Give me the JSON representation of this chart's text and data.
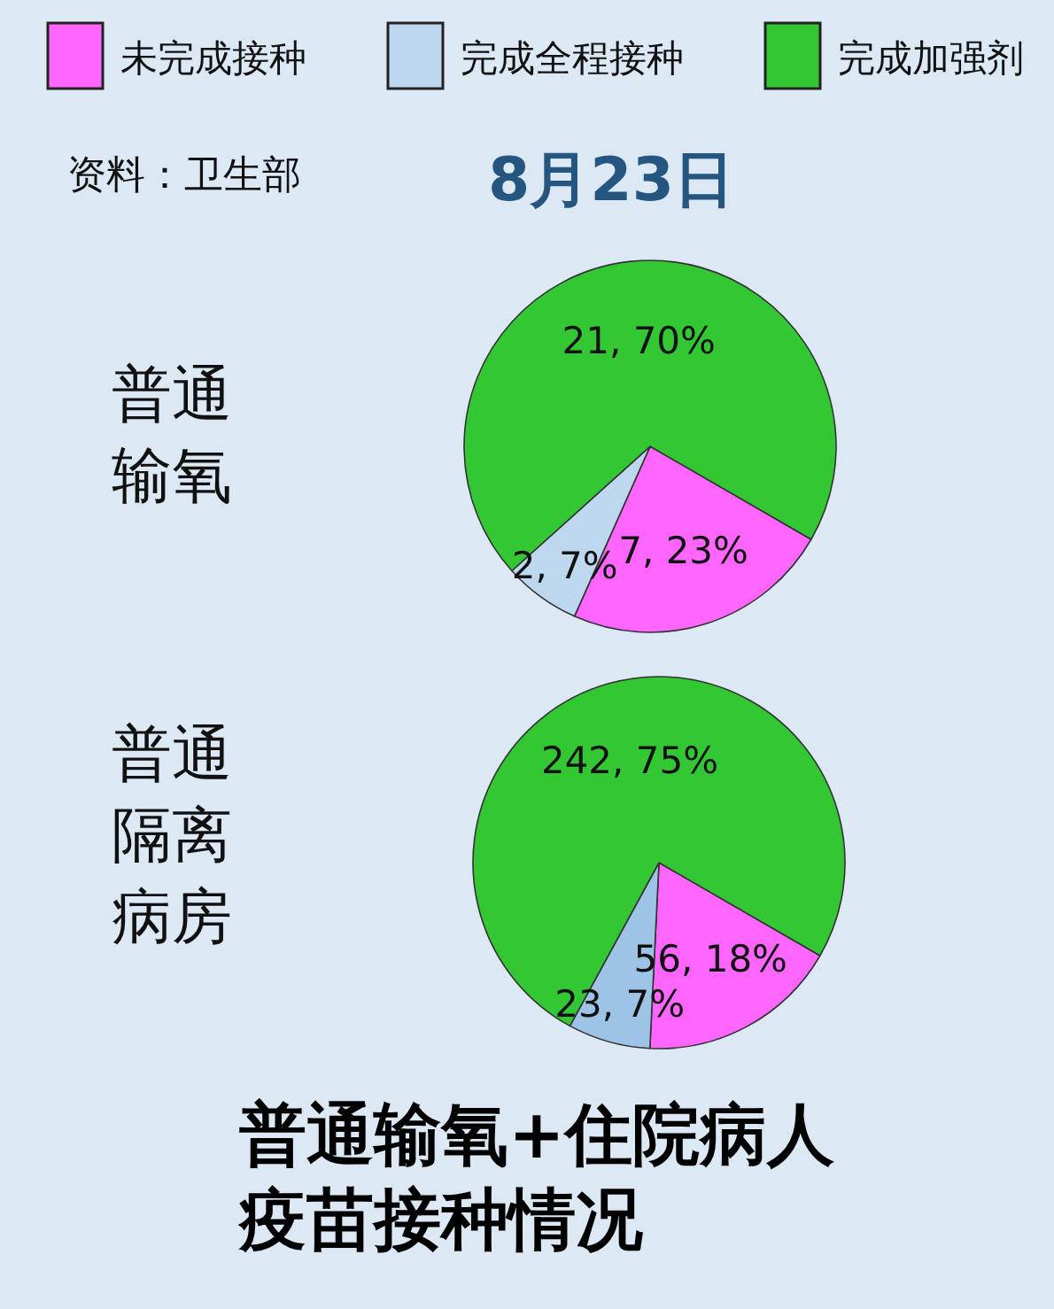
{
  "chart_data": [
    {
      "type": "pie",
      "title": "普通输氧",
      "categories": [
        "未完成接种",
        "完成全程接种",
        "完成加强剂"
      ],
      "values": [
        7,
        2,
        21
      ],
      "colors": [
        "#ff66ff",
        "#bdd7ee",
        "#33c733"
      ],
      "value_labels": [
        "7, 23%",
        "2, 7%",
        "21, 70%"
      ],
      "legend": "top",
      "annotations": [
        "资料：卫生部",
        "8月23日"
      ]
    },
    {
      "type": "pie",
      "title": "普通隔离病房",
      "categories": [
        null,
        null,
        null
      ],
      "values": [
        56,
        23,
        242
      ],
      "colors": [
        "#ff66ff",
        "#9dc3e6",
        "#33c733"
      ],
      "value_labels": [
        "56, 18%",
        "23, 7%",
        "242, 75%"
      ],
      "annotations": [
        "普通输氧+住院病人疫苗接种情况"
      ]
    }
  ]
}
